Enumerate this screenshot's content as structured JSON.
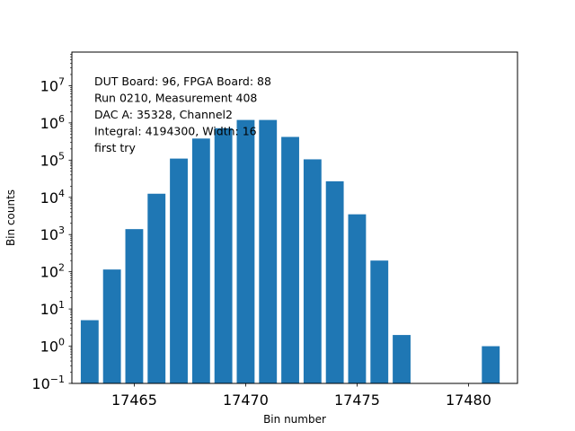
{
  "chart_data": {
    "type": "bar",
    "xlabel": "Bin number",
    "ylabel": "Bin counts",
    "yscale": "log",
    "xlim": [
      17462.2,
      17482.2
    ],
    "ylim": [
      0.1,
      80000000
    ],
    "grid": false,
    "bar_color": "#1f77b4",
    "x": [
      17463,
      17464,
      17465,
      17466,
      17467,
      17468,
      17469,
      17470,
      17471,
      17472,
      17473,
      17474,
      17475,
      17476,
      17477,
      17481
    ],
    "values": [
      5,
      115,
      1400,
      12500,
      110000,
      380000,
      720000,
      1200000,
      1200000,
      420000,
      105000,
      27000,
      3500,
      200,
      2,
      1
    ],
    "x_ticks": [
      {
        "value": 17465,
        "label": "17465"
      },
      {
        "value": 17470,
        "label": "17470"
      },
      {
        "value": 17475,
        "label": "17475"
      },
      {
        "value": 17480,
        "label": "17480"
      }
    ],
    "y_ticks": [
      {
        "value": 0.1,
        "base": "10",
        "exp": "−1"
      },
      {
        "value": 1,
        "base": "10",
        "exp": "0"
      },
      {
        "value": 10,
        "base": "10",
        "exp": "1"
      },
      {
        "value": 100,
        "base": "10",
        "exp": "2"
      },
      {
        "value": 1000,
        "base": "10",
        "exp": "3"
      },
      {
        "value": 10000,
        "base": "10",
        "exp": "4"
      },
      {
        "value": 100000,
        "base": "10",
        "exp": "5"
      },
      {
        "value": 1000000,
        "base": "10",
        "exp": "6"
      },
      {
        "value": 10000000,
        "base": "10",
        "exp": "7"
      }
    ],
    "annotation_lines": [
      "DUT Board: 96, FPGA Board: 88",
      "Run 0210, Measurement 408",
      "DAC A: 35328, Channel2",
      "Integral: 4194300, Width: 16",
      "first try"
    ],
    "annotation_placement": "top-left"
  }
}
